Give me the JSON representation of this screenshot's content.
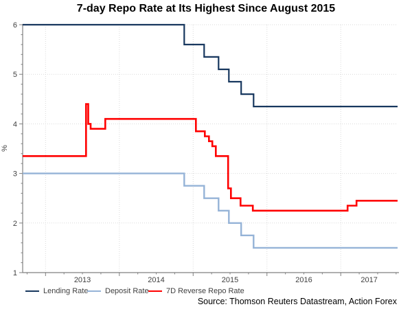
{
  "title": "7-day Repo Rate at Its Highest Since August 2015",
  "y_axis_label": "%",
  "source": "Source: Thomson Reuters Datastream, Action Forex",
  "chart_data": {
    "type": "line",
    "step": true,
    "title": "7-day Repo Rate at Its Highest Since August 2015",
    "ylabel": "%",
    "x_range": [
      2012.69,
      2017.77
    ],
    "y_range": [
      1,
      6
    ],
    "x_ticks": [
      2013,
      2014,
      2015,
      2016,
      2017
    ],
    "y_ticks": [
      1,
      2,
      3,
      4,
      5,
      6
    ],
    "x_minor_step": 0.25,
    "y_minor_step": 0.2,
    "grid": "dotted",
    "grid_color": "#d9d9d9",
    "axis_color": "#7f7f7f",
    "tick_label_color": "#404040",
    "legend_position": "bottom-left",
    "series": [
      {
        "name": "Lending Rate",
        "color": "#17375E",
        "width": 2.2,
        "points": [
          [
            2012.69,
            6.0
          ],
          [
            2014.879,
            5.6
          ],
          [
            2015.149,
            5.35
          ],
          [
            2015.344,
            5.1
          ],
          [
            2015.484,
            4.85
          ],
          [
            2015.651,
            4.6
          ],
          [
            2015.819,
            4.35
          ]
        ]
      },
      {
        "name": "Deposit Rate",
        "color": "#95B3D7",
        "width": 2.4,
        "points": [
          [
            2012.69,
            3.0
          ],
          [
            2014.879,
            2.75
          ],
          [
            2015.149,
            2.5
          ],
          [
            2015.344,
            2.25
          ],
          [
            2015.484,
            2.0
          ],
          [
            2015.651,
            1.75
          ],
          [
            2015.819,
            1.5
          ]
        ]
      },
      {
        "name": "7D Reverse Repo Rate",
        "color": "#FF0000",
        "width": 2.6,
        "points": [
          [
            2012.69,
            3.35
          ],
          [
            2013.549,
            4.4
          ],
          [
            2013.579,
            4.0
          ],
          [
            2013.611,
            3.9
          ],
          [
            2013.809,
            4.1
          ],
          [
            2015.037,
            3.85
          ],
          [
            2015.158,
            3.75
          ],
          [
            2015.214,
            3.65
          ],
          [
            2015.26,
            3.55
          ],
          [
            2015.307,
            3.35
          ],
          [
            2015.474,
            2.7
          ],
          [
            2015.512,
            2.5
          ],
          [
            2015.642,
            2.35
          ],
          [
            2015.809,
            2.25
          ],
          [
            2017.093,
            2.35
          ],
          [
            2017.214,
            2.45
          ]
        ]
      }
    ]
  }
}
